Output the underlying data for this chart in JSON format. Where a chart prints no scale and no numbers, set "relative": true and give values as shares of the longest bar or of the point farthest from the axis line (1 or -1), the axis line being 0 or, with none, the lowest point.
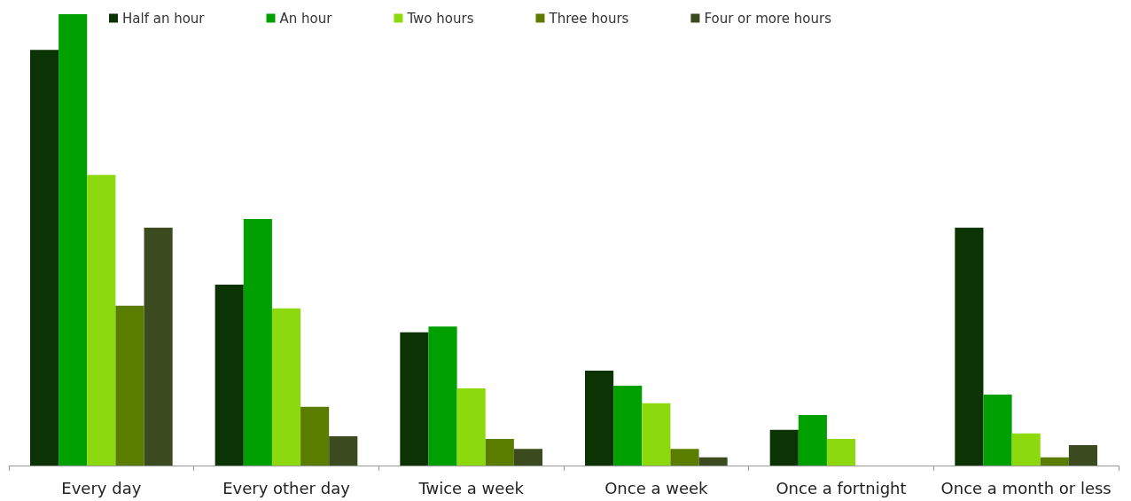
{
  "chart_data": {
    "type": "bar",
    "relative": true,
    "legend": "top",
    "categories": [
      "Every day",
      "Every other day",
      "Twice a week",
      "Once a week",
      "Once a fortnight",
      "Once a month or less"
    ],
    "series": [
      {
        "name": "Half an hour",
        "color": "#0b3303",
        "values": [
          0.921,
          0.401,
          0.295,
          0.21,
          0.079,
          0.527
        ]
      },
      {
        "name": "An hour",
        "color": "#00a000",
        "values": [
          1,
          0.546,
          0.308,
          0.177,
          0.112,
          0.157
        ]
      },
      {
        "name": "Two hours",
        "color": "#8cd90e",
        "values": [
          0.644,
          0.348,
          0.171,
          0.138,
          0.059,
          0.071
        ]
      },
      {
        "name": "Three hours",
        "color": "#5a7d00",
        "values": [
          0.354,
          0.13,
          0.059,
          0.037,
          0,
          0.018
        ]
      },
      {
        "name": "Four or more hours",
        "color": "#3b4a1f",
        "values": [
          0.527,
          0.065,
          0.037,
          0.018,
          0,
          0.045
        ]
      }
    ]
  }
}
